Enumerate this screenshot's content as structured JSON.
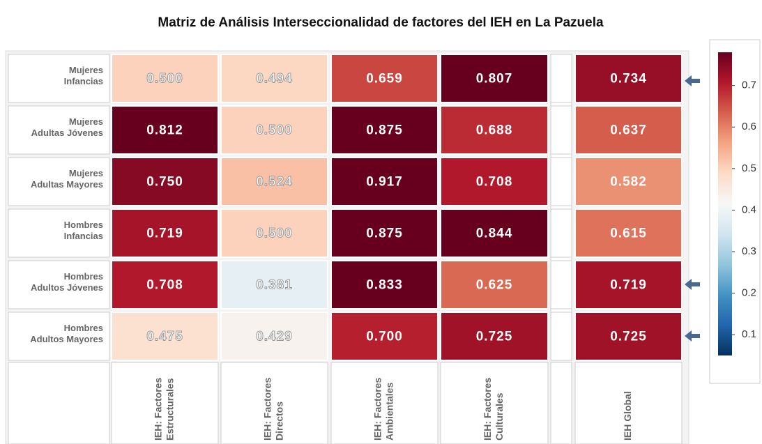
{
  "chart_data": {
    "type": "heatmap",
    "title": "Matriz de Análisis Interseccionalidad de factores del IEH en La Pazuela",
    "rows": [
      [
        "Mujeres",
        "Infancias"
      ],
      [
        "Mujeres",
        "Adultas Jóvenes"
      ],
      [
        "Mujeres",
        "Adultas Mayores"
      ],
      [
        "Hombres",
        "Infancias"
      ],
      [
        "Hombres",
        "Adultos Jóvenes"
      ],
      [
        "Hombres",
        "Adultos Mayores"
      ]
    ],
    "columns": [
      [
        "IEH: Factores",
        "Estructurales"
      ],
      [
        "IEH: Factores",
        "Directos"
      ],
      [
        "IEH: Factores",
        "Ambientales"
      ],
      [
        "IEH: Factores",
        "Culturales"
      ],
      [
        "IEH Global"
      ]
    ],
    "values": [
      [
        0.5,
        0.494,
        0.659,
        0.807,
        0.734
      ],
      [
        0.812,
        0.5,
        0.875,
        0.688,
        0.637
      ],
      [
        0.75,
        0.524,
        0.917,
        0.708,
        0.582
      ],
      [
        0.719,
        0.5,
        0.875,
        0.844,
        0.615
      ],
      [
        0.708,
        0.381,
        0.833,
        0.625,
        0.719
      ],
      [
        0.475,
        0.429,
        0.7,
        0.725,
        0.725
      ]
    ],
    "value_labels": [
      [
        "0.500",
        "0.494",
        "0.659",
        "0.807",
        "0.734"
      ],
      [
        "0.812",
        "0.500",
        "0.875",
        "0.688",
        "0.637"
      ],
      [
        "0.750",
        "0.524",
        "0.917",
        "0.708",
        "0.582"
      ],
      [
        "0.719",
        "0.500",
        "0.875",
        "0.844",
        "0.615"
      ],
      [
        "0.708",
        "0.381",
        "0.833",
        "0.625",
        "0.719"
      ],
      [
        "0.475",
        "0.429",
        "0.700",
        "0.725",
        "0.725"
      ]
    ],
    "clim": [
      0.05,
      0.78
    ],
    "cticks": [
      0.1,
      0.2,
      0.3,
      0.4,
      0.5,
      0.6,
      0.7
    ],
    "colormap": [
      "#053061",
      "#2166ac",
      "#4393c3",
      "#92c5de",
      "#d1e5f0",
      "#f7f7f7",
      "#fddbc7",
      "#f4a582",
      "#d6604d",
      "#b2182b",
      "#67001f"
    ]
  }
}
